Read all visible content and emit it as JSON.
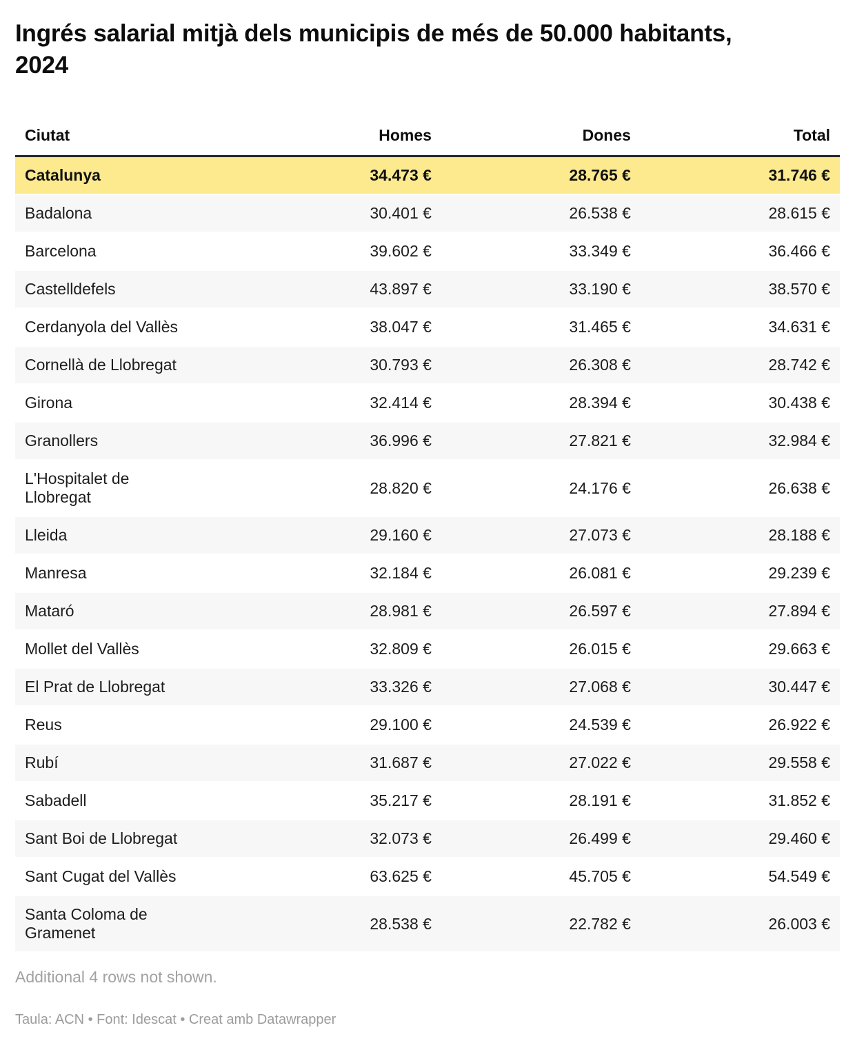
{
  "chart_data": {
    "type": "table",
    "title": "Ingrés salarial mitjà dels municipis de més de 50.000 habitants, 2024",
    "columns": [
      "Ciutat",
      "Homes",
      "Dones",
      "Total"
    ],
    "rows": [
      {
        "ciutat": "Catalunya",
        "homes": "34.473 €",
        "dones": "28.765 €",
        "total": "31.746 €",
        "highlight": true
      },
      {
        "ciutat": "Badalona",
        "homes": "30.401 €",
        "dones": "26.538 €",
        "total": "28.615 €",
        "highlight": false
      },
      {
        "ciutat": "Barcelona",
        "homes": "39.602 €",
        "dones": "33.349 €",
        "total": "36.466 €",
        "highlight": false
      },
      {
        "ciutat": "Castelldefels",
        "homes": "43.897 €",
        "dones": "33.190 €",
        "total": "38.570 €",
        "highlight": false
      },
      {
        "ciutat": "Cerdanyola del Vallès",
        "homes": "38.047 €",
        "dones": "31.465 €",
        "total": "34.631 €",
        "highlight": false
      },
      {
        "ciutat": "Cornellà de Llobregat",
        "homes": "30.793 €",
        "dones": "26.308 €",
        "total": "28.742 €",
        "highlight": false
      },
      {
        "ciutat": "Girona",
        "homes": "32.414 €",
        "dones": "28.394 €",
        "total": "30.438 €",
        "highlight": false
      },
      {
        "ciutat": "Granollers",
        "homes": "36.996 €",
        "dones": "27.821 €",
        "total": "32.984 €",
        "highlight": false
      },
      {
        "ciutat": "L'Hospitalet de\nLlobregat",
        "homes": "28.820 €",
        "dones": "24.176 €",
        "total": "26.638 €",
        "highlight": false
      },
      {
        "ciutat": "Lleida",
        "homes": "29.160 €",
        "dones": "27.073 €",
        "total": "28.188 €",
        "highlight": false
      },
      {
        "ciutat": "Manresa",
        "homes": "32.184 €",
        "dones": "26.081 €",
        "total": "29.239 €",
        "highlight": false
      },
      {
        "ciutat": "Mataró",
        "homes": "28.981 €",
        "dones": "26.597 €",
        "total": "27.894 €",
        "highlight": false
      },
      {
        "ciutat": "Mollet del Vallès",
        "homes": "32.809 €",
        "dones": "26.015 €",
        "total": "29.663 €",
        "highlight": false
      },
      {
        "ciutat": "El Prat de Llobregat",
        "homes": "33.326 €",
        "dones": "27.068 €",
        "total": "30.447 €",
        "highlight": false
      },
      {
        "ciutat": "Reus",
        "homes": "29.100 €",
        "dones": "24.539 €",
        "total": "26.922 €",
        "highlight": false
      },
      {
        "ciutat": "Rubí",
        "homes": "31.687 €",
        "dones": "27.022 €",
        "total": "29.558 €",
        "highlight": false
      },
      {
        "ciutat": "Sabadell",
        "homes": "35.217 €",
        "dones": "28.191 €",
        "total": "31.852 €",
        "highlight": false
      },
      {
        "ciutat": "Sant Boi de Llobregat",
        "homes": "32.073 €",
        "dones": "26.499 €",
        "total": "29.460 €",
        "highlight": false
      },
      {
        "ciutat": "Sant Cugat del Vallès",
        "homes": "63.625 €",
        "dones": "45.705 €",
        "total": "54.549 €",
        "highlight": false
      },
      {
        "ciutat": "Santa Coloma de\nGramenet",
        "homes": "28.538 €",
        "dones": "22.782 €",
        "total": "26.003 €",
        "highlight": false
      }
    ],
    "note": "Additional 4 rows not shown.",
    "footer": "Taula: ACN • Font: Idescat • Creat amb Datawrapper",
    "colors": {
      "highlight_row_bg": "#fdea8f",
      "stripe_row_bg": "#f7f7f7",
      "header_rule": "#262626",
      "body_text": "#1d1d1d",
      "muted_text": "#9c9c9c"
    },
    "layout": {
      "grid": "off",
      "legend": "none",
      "striped": true
    }
  }
}
